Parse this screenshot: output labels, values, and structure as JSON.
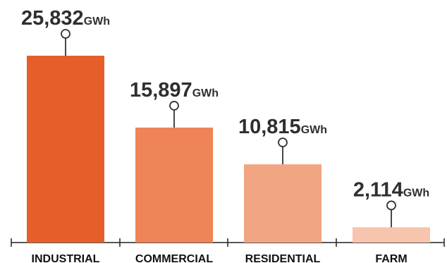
{
  "chart_data": {
    "type": "bar",
    "categories": [
      "INDUSTRIAL",
      "COMMERCIAL",
      "RESIDENTIAL",
      "FARM"
    ],
    "values": [
      25832,
      15897,
      10815,
      2114
    ],
    "value_labels": [
      "25,832",
      "15,897",
      "10,815",
      "2,114"
    ],
    "unit": "GWh",
    "colors": [
      "#e65f2b",
      "#ee8457",
      "#f2a583",
      "#f7c5ae"
    ],
    "title": "",
    "xlabel": "",
    "ylabel": "",
    "ylim": [
      0,
      25832
    ],
    "grid": false,
    "legend": "none"
  }
}
